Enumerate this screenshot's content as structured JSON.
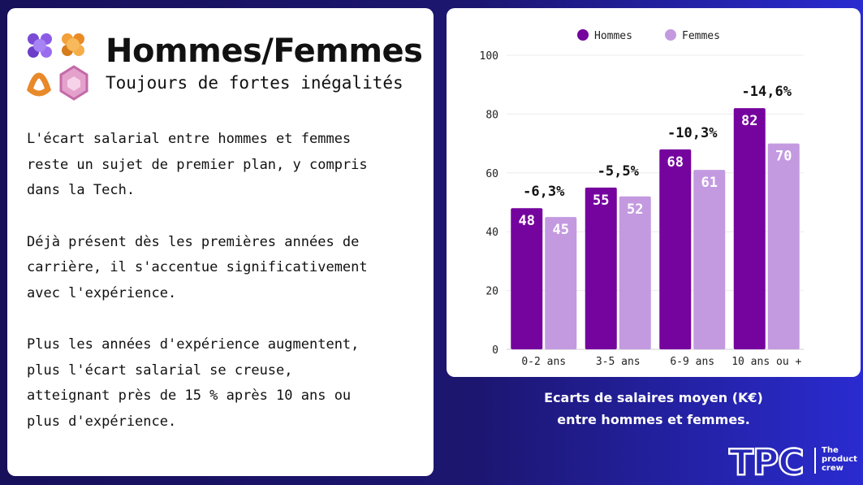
{
  "header": {
    "title": "Hommes/Femmes",
    "subtitle": "Toujours de fortes inégalités"
  },
  "body": {
    "paragraphs": [
      "L'écart salarial entre hommes et femmes reste un sujet de premier plan, y compris dans la Tech.",
      "Déjà présent dès les premières années de carrière, il s'accentue significativement avec l'expérience.",
      "Plus les années d'expérience augmentent, plus l'écart salarial se creuse, atteignant près de 15 % après 10 ans ou plus d'expérience."
    ]
  },
  "caption": {
    "line1": "Ecarts de salaires moyen (K€)",
    "line2": "entre hommes et femmes."
  },
  "brand": {
    "logo_text": "TPC",
    "tagline": [
      "The",
      "product",
      "crew"
    ]
  },
  "colors": {
    "hommes": "#75049e",
    "femmes": "#c39ae0",
    "background": "#1c1670",
    "card": "#ffffff"
  },
  "chart_data": {
    "type": "bar",
    "title": "",
    "xlabel": "",
    "ylabel": "",
    "categories": [
      "0-2 ans",
      "3-5 ans",
      "6-9 ans",
      "10 ans ou +"
    ],
    "series": [
      {
        "name": "Hommes",
        "values": [
          48,
          55,
          68,
          82
        ]
      },
      {
        "name": "Femmes",
        "values": [
          45,
          52,
          61,
          70
        ]
      }
    ],
    "annotations": [
      "-6,3%",
      "-5,5%",
      "-10,3%",
      "-14,6%"
    ],
    "ylim": [
      0,
      100
    ],
    "yticks": [
      0,
      20,
      40,
      60,
      80,
      100
    ],
    "grid": true,
    "legend_position": "top"
  }
}
